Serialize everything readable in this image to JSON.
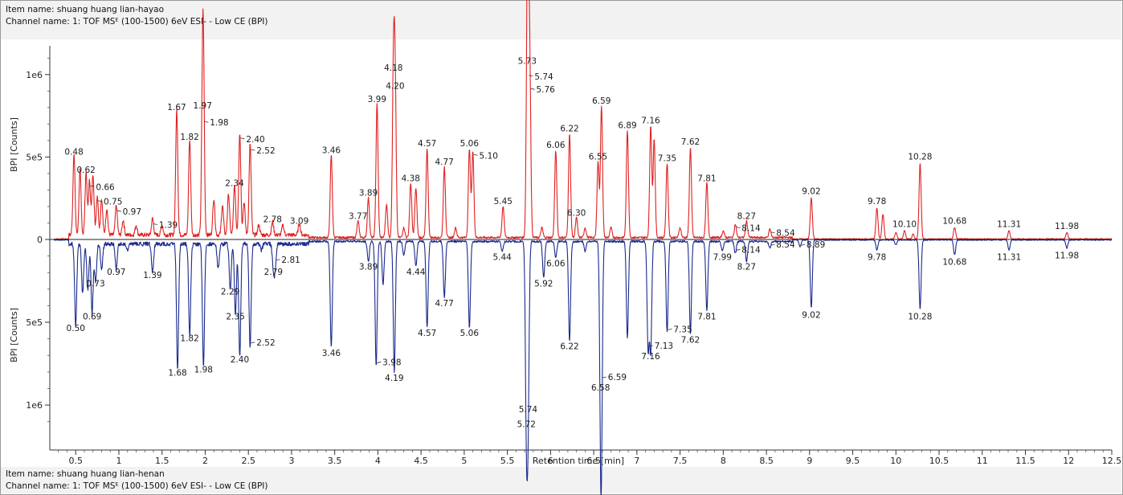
{
  "header_top": {
    "item_line": "Item name: shuang huang lian-hayao",
    "channel_line": "Channel name: 1: TOF MSᴱ (100-1500) 6eV ESI- - Low CE (BPI)"
  },
  "header_bottom": {
    "item_line": "Item name: shuang huang lian-henan",
    "channel_line": "Channel name: 1: TOF MSᴱ (100-1500) 6eV ESI- - Low CE (BPI)"
  },
  "chart_data": {
    "type": "line",
    "title": "",
    "xlabel": "Retention time [min]",
    "ylabel_top": "BPI [Counts]",
    "ylabel_bottom": "BPI [Counts]",
    "xlim": [
      0.2,
      12.5
    ],
    "ylim_top": [
      0,
      1150000
    ],
    "ylim_bottom": [
      0,
      1150000
    ],
    "x_ticks": [
      "0.5",
      "1",
      "1.5",
      "2",
      "2.5",
      "3",
      "3.5",
      "4",
      "4.5",
      "5",
      "5.5",
      "6",
      "6.5",
      "7",
      "7.5",
      "8",
      "8.5",
      "9",
      "9.5",
      "10",
      "10.5",
      "11",
      "11.5",
      "12",
      "12.5"
    ],
    "y_ticks_top": [
      "0",
      "5e5",
      "1e6"
    ],
    "y_ticks_bottom": [
      "5e5",
      "1e6"
    ],
    "colors": {
      "top": "#e02020",
      "bottom": "#1a2a8c"
    },
    "series": [
      {
        "name": "shuang huang lian-hayao",
        "orientation": "up",
        "peaks": [
          {
            "x": 0.48,
            "y": 490000,
            "label": "0.48"
          },
          {
            "x": 0.55,
            "y": 390000,
            "label": ""
          },
          {
            "x": 0.62,
            "y": 380000,
            "label": "0.62"
          },
          {
            "x": 0.66,
            "y": 330000,
            "label": "0.66"
          },
          {
            "x": 0.7,
            "y": 370000,
            "label": ""
          },
          {
            "x": 0.75,
            "y": 240000,
            "label": "0.75"
          },
          {
            "x": 0.8,
            "y": 220000,
            "label": ""
          },
          {
            "x": 0.86,
            "y": 160000,
            "label": ""
          },
          {
            "x": 0.97,
            "y": 180000,
            "label": "0.97"
          },
          {
            "x": 1.05,
            "y": 90000,
            "label": ""
          },
          {
            "x": 1.2,
            "y": 60000,
            "label": ""
          },
          {
            "x": 1.39,
            "y": 100000,
            "label": "1.39"
          },
          {
            "x": 1.5,
            "y": 60000,
            "label": ""
          },
          {
            "x": 1.67,
            "y": 760000,
            "label": "1.67"
          },
          {
            "x": 1.82,
            "y": 580000,
            "label": "1.82"
          },
          {
            "x": 1.97,
            "y": 770000,
            "label": "1.97"
          },
          {
            "x": 1.98,
            "y": 720000,
            "label": "1.98"
          },
          {
            "x": 2.1,
            "y": 220000,
            "label": ""
          },
          {
            "x": 2.2,
            "y": 180000,
            "label": ""
          },
          {
            "x": 2.27,
            "y": 250000,
            "label": ""
          },
          {
            "x": 2.34,
            "y": 300000,
            "label": "2.34"
          },
          {
            "x": 2.4,
            "y": 620000,
            "label": "2.40"
          },
          {
            "x": 2.45,
            "y": 200000,
            "label": ""
          },
          {
            "x": 2.52,
            "y": 550000,
            "label": "2.52"
          },
          {
            "x": 2.62,
            "y": 60000,
            "label": ""
          },
          {
            "x": 2.78,
            "y": 80000,
            "label": "2.78"
          },
          {
            "x": 2.9,
            "y": 60000,
            "label": ""
          },
          {
            "x": 3.09,
            "y": 70000,
            "label": "3.09"
          },
          {
            "x": 3.46,
            "y": 500000,
            "label": "3.46"
          },
          {
            "x": 3.77,
            "y": 100000,
            "label": "3.77"
          },
          {
            "x": 3.89,
            "y": 240000,
            "label": "3.89"
          },
          {
            "x": 3.99,
            "y": 810000,
            "label": "3.99"
          },
          {
            "x": 4.1,
            "y": 200000,
            "label": ""
          },
          {
            "x": 4.18,
            "y": 1000000,
            "label": "4.18"
          },
          {
            "x": 4.2,
            "y": 890000,
            "label": "4.20"
          },
          {
            "x": 4.3,
            "y": 60000,
            "label": ""
          },
          {
            "x": 4.38,
            "y": 330000,
            "label": "4.38"
          },
          {
            "x": 4.44,
            "y": 300000,
            "label": ""
          },
          {
            "x": 4.57,
            "y": 540000,
            "label": "4.57"
          },
          {
            "x": 4.77,
            "y": 430000,
            "label": "4.77"
          },
          {
            "x": 4.9,
            "y": 60000,
            "label": ""
          },
          {
            "x": 5.06,
            "y": 540000,
            "label": "5.06"
          },
          {
            "x": 5.1,
            "y": 520000,
            "label": "5.10"
          },
          {
            "x": 5.45,
            "y": 190000,
            "label": "5.45"
          },
          {
            "x": 5.73,
            "y": 1040000,
            "label": "5.73"
          },
          {
            "x": 5.74,
            "y": 1000000,
            "label": "5.74"
          },
          {
            "x": 5.76,
            "y": 920000,
            "label": "5.76"
          },
          {
            "x": 5.9,
            "y": 60000,
            "label": ""
          },
          {
            "x": 6.06,
            "y": 530000,
            "label": "6.06"
          },
          {
            "x": 6.22,
            "y": 630000,
            "label": "6.22"
          },
          {
            "x": 6.3,
            "y": 120000,
            "label": "6.30"
          },
          {
            "x": 6.4,
            "y": 60000,
            "label": ""
          },
          {
            "x": 6.55,
            "y": 460000,
            "label": "6.55"
          },
          {
            "x": 6.59,
            "y": 800000,
            "label": "6.59"
          },
          {
            "x": 6.7,
            "y": 60000,
            "label": ""
          },
          {
            "x": 6.89,
            "y": 650000,
            "label": "6.89"
          },
          {
            "x": 7.16,
            "y": 680000,
            "label": "7.16"
          },
          {
            "x": 7.2,
            "y": 600000,
            "label": ""
          },
          {
            "x": 7.35,
            "y": 450000,
            "label": "7.35"
          },
          {
            "x": 7.5,
            "y": 60000,
            "label": ""
          },
          {
            "x": 7.62,
            "y": 550000,
            "label": "7.62"
          },
          {
            "x": 7.81,
            "y": 330000,
            "label": "7.81"
          },
          {
            "x": 8.0,
            "y": 40000,
            "label": ""
          },
          {
            "x": 8.14,
            "y": 80000,
            "label": "8.14"
          },
          {
            "x": 8.27,
            "y": 100000,
            "label": "8.27"
          },
          {
            "x": 8.54,
            "y": 50000,
            "label": "8.54"
          },
          {
            "x": 9.02,
            "y": 250000,
            "label": "9.02"
          },
          {
            "x": 9.78,
            "y": 190000,
            "label": "9.78"
          },
          {
            "x": 9.85,
            "y": 150000,
            "label": ""
          },
          {
            "x": 10.0,
            "y": 40000,
            "label": ""
          },
          {
            "x": 10.1,
            "y": 50000,
            "label": "10.10"
          },
          {
            "x": 10.2,
            "y": 30000,
            "label": ""
          },
          {
            "x": 10.28,
            "y": 460000,
            "label": "10.28"
          },
          {
            "x": 10.68,
            "y": 70000,
            "label": "10.68"
          },
          {
            "x": 11.31,
            "y": 50000,
            "label": "11.31"
          },
          {
            "x": 11.98,
            "y": 40000,
            "label": "11.98"
          }
        ]
      },
      {
        "name": "shuang huang lian-henan",
        "orientation": "down",
        "peaks": [
          {
            "x": 0.5,
            "y": 490000,
            "label": "0.50"
          },
          {
            "x": 0.58,
            "y": 300000,
            "label": ""
          },
          {
            "x": 0.64,
            "y": 280000,
            "label": ""
          },
          {
            "x": 0.69,
            "y": 420000,
            "label": "0.69"
          },
          {
            "x": 0.73,
            "y": 220000,
            "label": "0.73"
          },
          {
            "x": 0.8,
            "y": 160000,
            "label": ""
          },
          {
            "x": 0.97,
            "y": 150000,
            "label": "0.97"
          },
          {
            "x": 1.1,
            "y": 40000,
            "label": ""
          },
          {
            "x": 1.39,
            "y": 170000,
            "label": "1.39"
          },
          {
            "x": 1.68,
            "y": 760000,
            "label": "1.68"
          },
          {
            "x": 1.82,
            "y": 550000,
            "label": "1.82"
          },
          {
            "x": 1.98,
            "y": 740000,
            "label": "1.98"
          },
          {
            "x": 2.15,
            "y": 150000,
            "label": ""
          },
          {
            "x": 2.29,
            "y": 270000,
            "label": "2.29"
          },
          {
            "x": 2.35,
            "y": 420000,
            "label": "2.35"
          },
          {
            "x": 2.4,
            "y": 680000,
            "label": "2.40"
          },
          {
            "x": 2.52,
            "y": 630000,
            "label": "2.52"
          },
          {
            "x": 2.65,
            "y": 40000,
            "label": ""
          },
          {
            "x": 2.79,
            "y": 150000,
            "label": "2.79"
          },
          {
            "x": 2.81,
            "y": 130000,
            "label": "2.81"
          },
          {
            "x": 3.46,
            "y": 640000,
            "label": "3.46"
          },
          {
            "x": 3.89,
            "y": 120000,
            "label": "3.89"
          },
          {
            "x": 3.98,
            "y": 750000,
            "label": "3.98"
          },
          {
            "x": 4.06,
            "y": 260000,
            "label": ""
          },
          {
            "x": 4.19,
            "y": 790000,
            "label": "4.19"
          },
          {
            "x": 4.3,
            "y": 80000,
            "label": ""
          },
          {
            "x": 4.44,
            "y": 150000,
            "label": "4.44"
          },
          {
            "x": 4.57,
            "y": 520000,
            "label": "4.57"
          },
          {
            "x": 4.77,
            "y": 340000,
            "label": "4.77"
          },
          {
            "x": 5.06,
            "y": 520000,
            "label": "5.06"
          },
          {
            "x": 5.44,
            "y": 60000,
            "label": "5.44"
          },
          {
            "x": 5.72,
            "y": 1070000,
            "label": "5.72"
          },
          {
            "x": 5.74,
            "y": 980000,
            "label": "5.74"
          },
          {
            "x": 5.92,
            "y": 220000,
            "label": "5.92"
          },
          {
            "x": 6.06,
            "y": 100000,
            "label": "6.06"
          },
          {
            "x": 6.22,
            "y": 600000,
            "label": "6.22"
          },
          {
            "x": 6.4,
            "y": 60000,
            "label": ""
          },
          {
            "x": 6.58,
            "y": 850000,
            "label": "6.58"
          },
          {
            "x": 6.59,
            "y": 840000,
            "label": "6.59"
          },
          {
            "x": 6.89,
            "y": 580000,
            "label": ""
          },
          {
            "x": 7.13,
            "y": 650000,
            "label": "7.13"
          },
          {
            "x": 7.16,
            "y": 660000,
            "label": "7.16"
          },
          {
            "x": 7.35,
            "y": 550000,
            "label": "7.35"
          },
          {
            "x": 7.62,
            "y": 560000,
            "label": "7.62"
          },
          {
            "x": 7.81,
            "y": 420000,
            "label": "7.81"
          },
          {
            "x": 7.99,
            "y": 60000,
            "label": "7.99"
          },
          {
            "x": 8.14,
            "y": 70000,
            "label": "8.14"
          },
          {
            "x": 8.27,
            "y": 120000,
            "label": "8.27"
          },
          {
            "x": 8.54,
            "y": 40000,
            "label": "8.54"
          },
          {
            "x": 8.89,
            "y": 40000,
            "label": "8.89"
          },
          {
            "x": 9.02,
            "y": 410000,
            "label": "9.02"
          },
          {
            "x": 9.78,
            "y": 60000,
            "label": "9.78"
          },
          {
            "x": 10.0,
            "y": 30000,
            "label": ""
          },
          {
            "x": 10.28,
            "y": 420000,
            "label": "10.28"
          },
          {
            "x": 10.68,
            "y": 90000,
            "label": "10.68"
          },
          {
            "x": 11.31,
            "y": 60000,
            "label": "11.31"
          },
          {
            "x": 11.98,
            "y": 50000,
            "label": "11.98"
          }
        ]
      }
    ]
  }
}
